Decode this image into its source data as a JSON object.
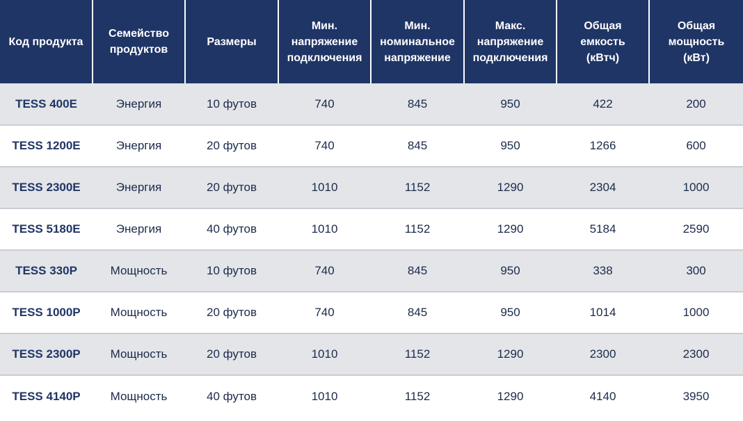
{
  "table": {
    "headers": [
      "Код продукта",
      "Семейство\nпродуктов",
      "Размеры",
      "Мин.\nнапряжение\nподключения",
      "Мин.\nноминальное\nнапряжение",
      "Макс.\nнапряжение\nподключения",
      "Общая\nемкость\n(кВтч)",
      "Общая\nмощность\n(кВт)"
    ],
    "rows": [
      [
        "TESS 400E",
        "Энергия",
        "10 футов",
        "740",
        "845",
        "950",
        "422",
        "200"
      ],
      [
        "TESS 1200E",
        "Энергия",
        "20 футов",
        "740",
        "845",
        "950",
        "1266",
        "600"
      ],
      [
        "TESS 2300E",
        "Энергия",
        "20 футов",
        "1010",
        "1152",
        "1290",
        "2304",
        "1000"
      ],
      [
        "TESS 5180E",
        "Энергия",
        "40 футов",
        "1010",
        "1152",
        "1290",
        "5184",
        "2590"
      ],
      [
        "TESS 330P",
        "Мощность",
        "10 футов",
        "740",
        "845",
        "950",
        "338",
        "300"
      ],
      [
        "TESS 1000P",
        "Мощность",
        "20 футов",
        "740",
        "845",
        "950",
        "1014",
        "1000"
      ],
      [
        "TESS 2300P",
        "Мощность",
        "20 футов",
        "1010",
        "1152",
        "1290",
        "2300",
        "2300"
      ],
      [
        "TESS 4140P",
        "Мощность",
        "40 футов",
        "1010",
        "1152",
        "1290",
        "4140",
        "3950"
      ]
    ]
  },
  "colors": {
    "header_bg": "#1f3566",
    "row_alt_bg": "#e3e5e9",
    "text": "#1b2a4a"
  }
}
